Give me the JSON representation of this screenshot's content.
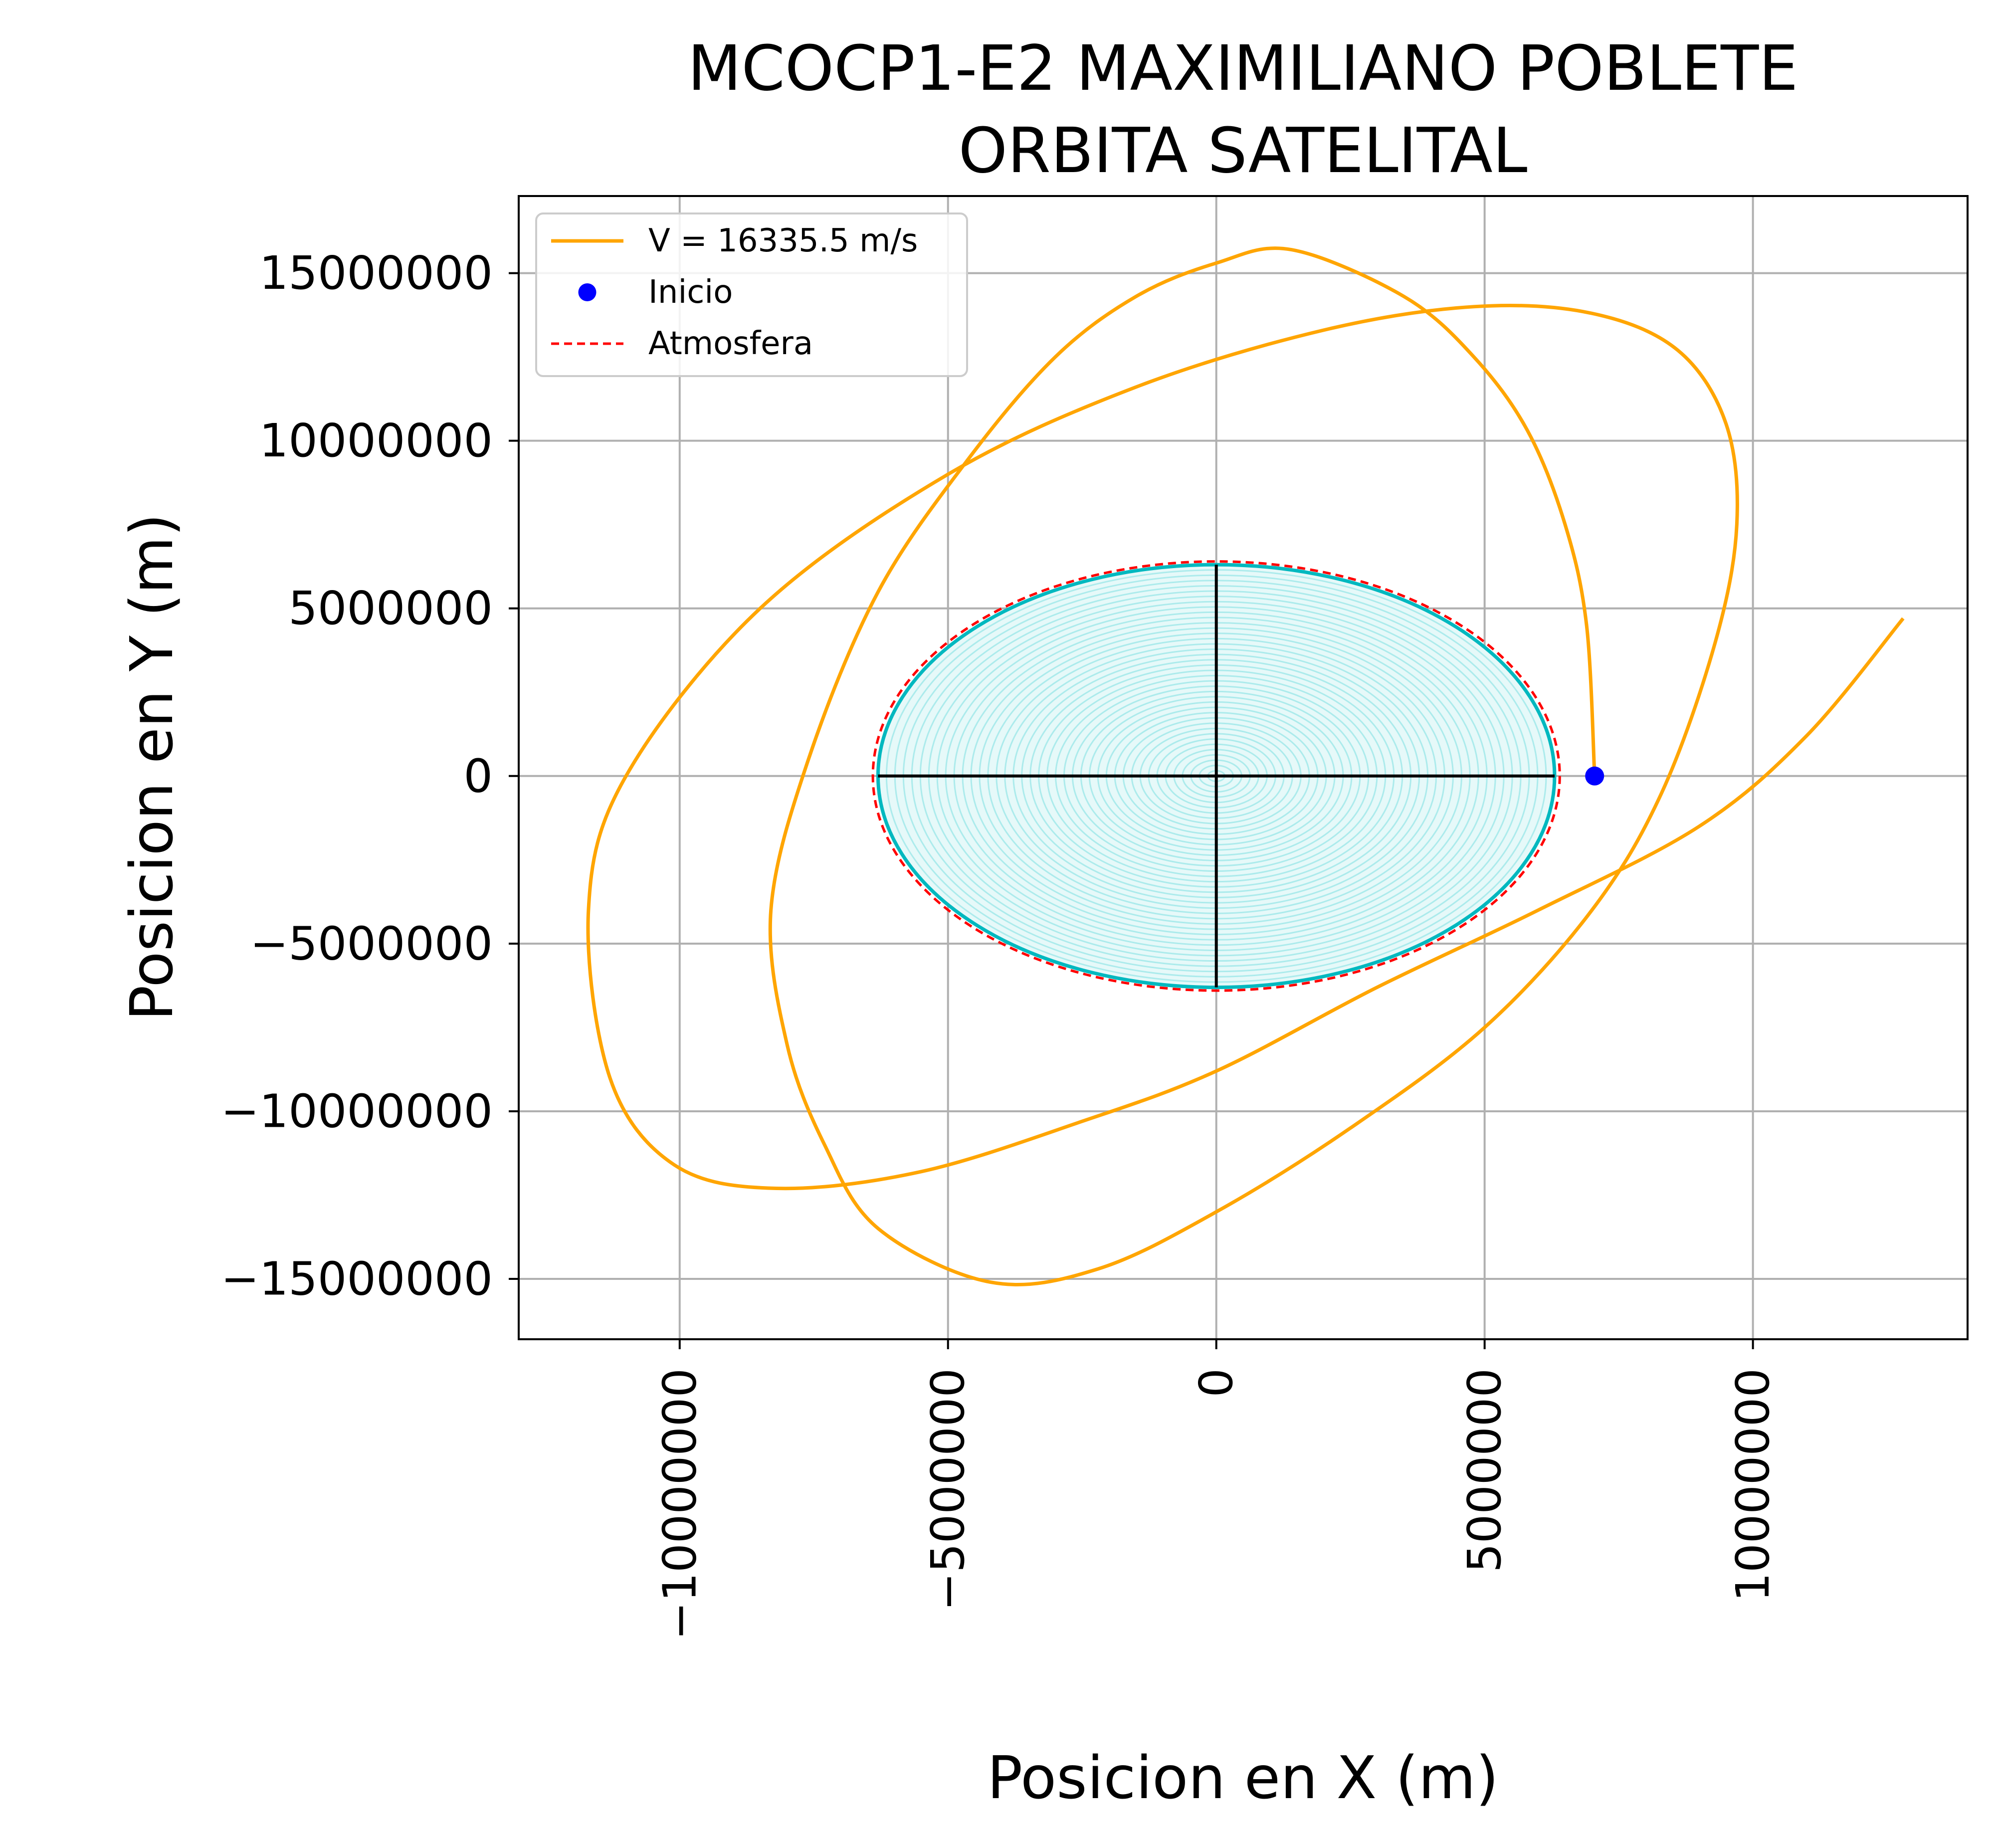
{
  "chart_data": {
    "type": "line",
    "title": "MCOCP1-E2 MAXIMILIANO POBLETE\nORBITA SATELITAL",
    "title_lines": [
      "MCOCP1-E2 MAXIMILIANO POBLETE",
      "ORBITA SATELITAL"
    ],
    "xlabel": "Posicion en X (m)",
    "ylabel": "Posicion en Y (m)",
    "xlim": [
      -13000000,
      14000000
    ],
    "ylim": [
      -16800000,
      17300000
    ],
    "xticks": [
      -10000000,
      -5000000,
      0,
      5000000,
      10000000
    ],
    "xtick_labels": [
      "−10000000",
      "−5000000",
      "0",
      "5000000",
      "10000000"
    ],
    "yticks": [
      15000000,
      10000000,
      5000000,
      0,
      -5000000,
      -10000000,
      -15000000
    ],
    "ytick_labels": [
      "15000000",
      "10000000",
      "5000000",
      "0",
      "−5000000",
      "−10000000",
      "−15000000"
    ],
    "grid": true,
    "legend_position": "top-left",
    "legend": [
      {
        "label": "V = 16335.5 m/s",
        "marker": "line",
        "color": "#ffa500"
      },
      {
        "label": "Inicio",
        "marker": "dot",
        "color": "#0000ff"
      },
      {
        "label": "Atmosfera",
        "marker": "dashed",
        "color": "#ff0000"
      }
    ],
    "series": [
      {
        "name": "V = 16335.5 m/s",
        "color": "#ffa500",
        "x": [
          7050000,
          6900000,
          6500000,
          5800000,
          4800000,
          3500000,
          1400000,
          0,
          -1500000,
          -3000000,
          -4600000,
          -6300000,
          -7600000,
          -8300000,
          -8000000,
          -7300000,
          -6300000,
          -4200000,
          -2200000,
          0,
          2500000,
          5000000,
          7000000,
          8300000,
          9300000,
          9700000,
          9500000,
          8600000,
          7000000,
          4800000,
          2000000,
          -1500000,
          -5000000,
          -8500000,
          -11000000,
          -11700000,
          -11300000,
          -10100000,
          -8200000,
          -5500000,
          -2500000,
          0,
          3000000,
          6000000,
          9000000,
          11000000,
          12800000
        ],
        "y": [
          0,
          4500000,
          7500000,
          10300000,
          12500000,
          14300000,
          15700000,
          15300000,
          14300000,
          12500000,
          9500000,
          5500000,
          500000,
          -4000000,
          -8000000,
          -11000000,
          -13500000,
          -15100000,
          -14700000,
          -13000000,
          -10500000,
          -7500000,
          -4000000,
          -500000,
          4000000,
          7500000,
          10500000,
          12700000,
          13800000,
          14000000,
          13300000,
          11600000,
          9000000,
          5000000,
          0,
          -4000000,
          -9000000,
          -11600000,
          -12300000,
          -11800000,
          -10300000,
          -8800000,
          -6300000,
          -4000000,
          -1500000,
          1200000,
          4700000
        ]
      }
    ],
    "start_point": {
      "label": "Inicio",
      "x": 7050000,
      "y": 0,
      "color": "#0000ff"
    },
    "atmosphere": {
      "label": "Atmosfera",
      "radius_x": 6400000,
      "radius_y": 6400000,
      "color": "#ff0000",
      "style": "dashed"
    },
    "earth": {
      "fill_color": "#00c2c8",
      "edge_color": "#00b8bf"
    },
    "axes_color": "#000000"
  }
}
